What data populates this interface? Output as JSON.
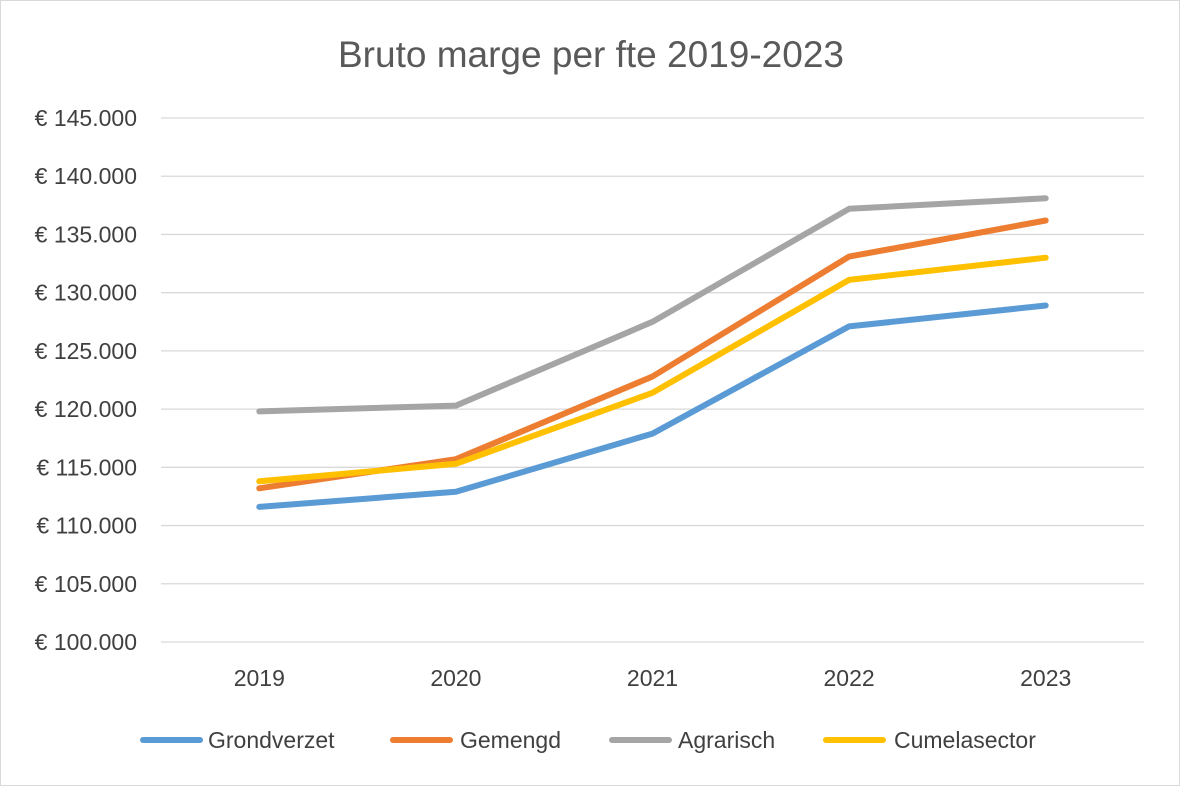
{
  "chart_data": {
    "type": "line",
    "title": "Bruto marge per fte 2019-2023",
    "xlabel": "",
    "ylabel": "",
    "categories": [
      "2019",
      "2020",
      "2021",
      "2022",
      "2023"
    ],
    "ylim": [
      100000,
      145000
    ],
    "ytick_values": [
      100000,
      105000,
      110000,
      115000,
      120000,
      125000,
      130000,
      135000,
      140000,
      145000
    ],
    "ytick_labels": [
      "€ 100.000",
      "€ 105.000",
      "€ 110.000",
      "€ 115.000",
      "€ 120.000",
      "€ 125.000",
      "€ 130.000",
      "€ 135.000",
      "€ 140.000",
      "€ 145.000"
    ],
    "grid": true,
    "legend_position": "bottom",
    "series": [
      {
        "name": "Grondverzet",
        "color": "#5b9bd5",
        "values": [
          111600,
          112900,
          117900,
          127100,
          128900
        ]
      },
      {
        "name": "Gemengd",
        "color": "#ed7d31",
        "values": [
          113200,
          115700,
          122800,
          133100,
          136200
        ]
      },
      {
        "name": "Agrarisch",
        "color": "#a5a5a5",
        "values": [
          119800,
          120300,
          127500,
          137200,
          138100
        ]
      },
      {
        "name": "Cumelasector",
        "color": "#ffc000",
        "values": [
          113800,
          115300,
          121400,
          131100,
          133000
        ]
      }
    ]
  }
}
